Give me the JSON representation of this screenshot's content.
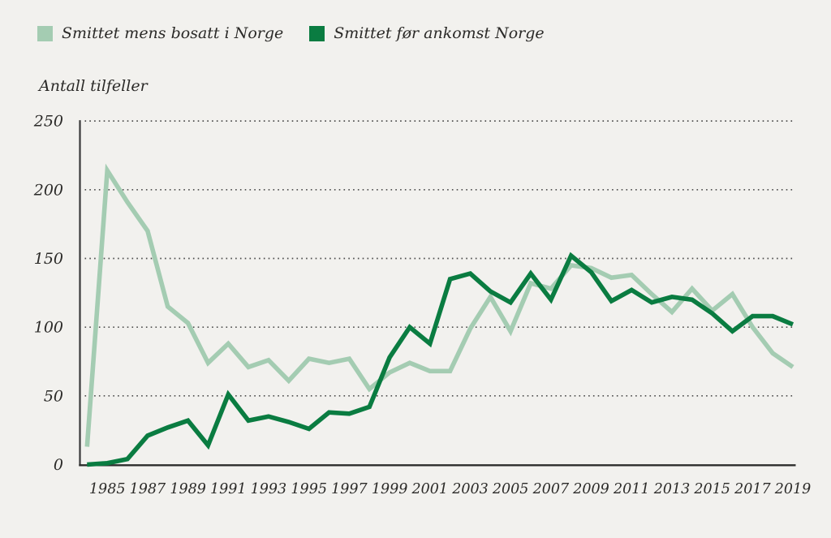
{
  "colors": {
    "background": "#f2f1ee",
    "light_green": "#a4ccb2",
    "dark_green": "#0a7c41",
    "text": "#2b2a28",
    "grid": "#4c4c4c",
    "axis": "#2c2c2c"
  },
  "chart_data": {
    "type": "line",
    "title": "",
    "ylabel": "Antall tilfeller",
    "xlabel": "",
    "ylim": [
      0,
      250
    ],
    "yticks": [
      0,
      50,
      100,
      150,
      200,
      250
    ],
    "xticks": [
      1985,
      1987,
      1989,
      1991,
      1993,
      1995,
      1997,
      1999,
      2001,
      2003,
      2005,
      2007,
      2009,
      2011,
      2013,
      2015,
      2017,
      2019
    ],
    "grid": "horizontal-dotted",
    "legend_position": "top-left",
    "x": [
      1984,
      1985,
      1986,
      1987,
      1988,
      1989,
      1990,
      1991,
      1992,
      1993,
      1994,
      1995,
      1996,
      1997,
      1998,
      1999,
      2000,
      2001,
      2002,
      2003,
      2004,
      2005,
      2006,
      2007,
      2008,
      2009,
      2010,
      2011,
      2012,
      2013,
      2014,
      2015,
      2016,
      2017,
      2018,
      2019
    ],
    "series": [
      {
        "name": "Smittet mens bosatt i Norge",
        "color": "#a4ccb2",
        "values": [
          13,
          214,
          191,
          170,
          115,
          103,
          74,
          88,
          71,
          76,
          61,
          77,
          74,
          77,
          55,
          67,
          74,
          68,
          68,
          99,
          122,
          97,
          132,
          128,
          145,
          143,
          136,
          138,
          124,
          111,
          128,
          112,
          124,
          100,
          81,
          71
        ]
      },
      {
        "name": "Smittet før ankomst Norge",
        "color": "#0a7c41",
        "values": [
          0,
          1,
          4,
          21,
          27,
          32,
          14,
          51,
          32,
          35,
          31,
          26,
          38,
          37,
          42,
          78,
          100,
          88,
          135,
          139,
          126,
          118,
          139,
          120,
          152,
          140,
          119,
          127,
          118,
          122,
          120,
          110,
          97,
          108,
          108,
          102
        ]
      }
    ]
  }
}
